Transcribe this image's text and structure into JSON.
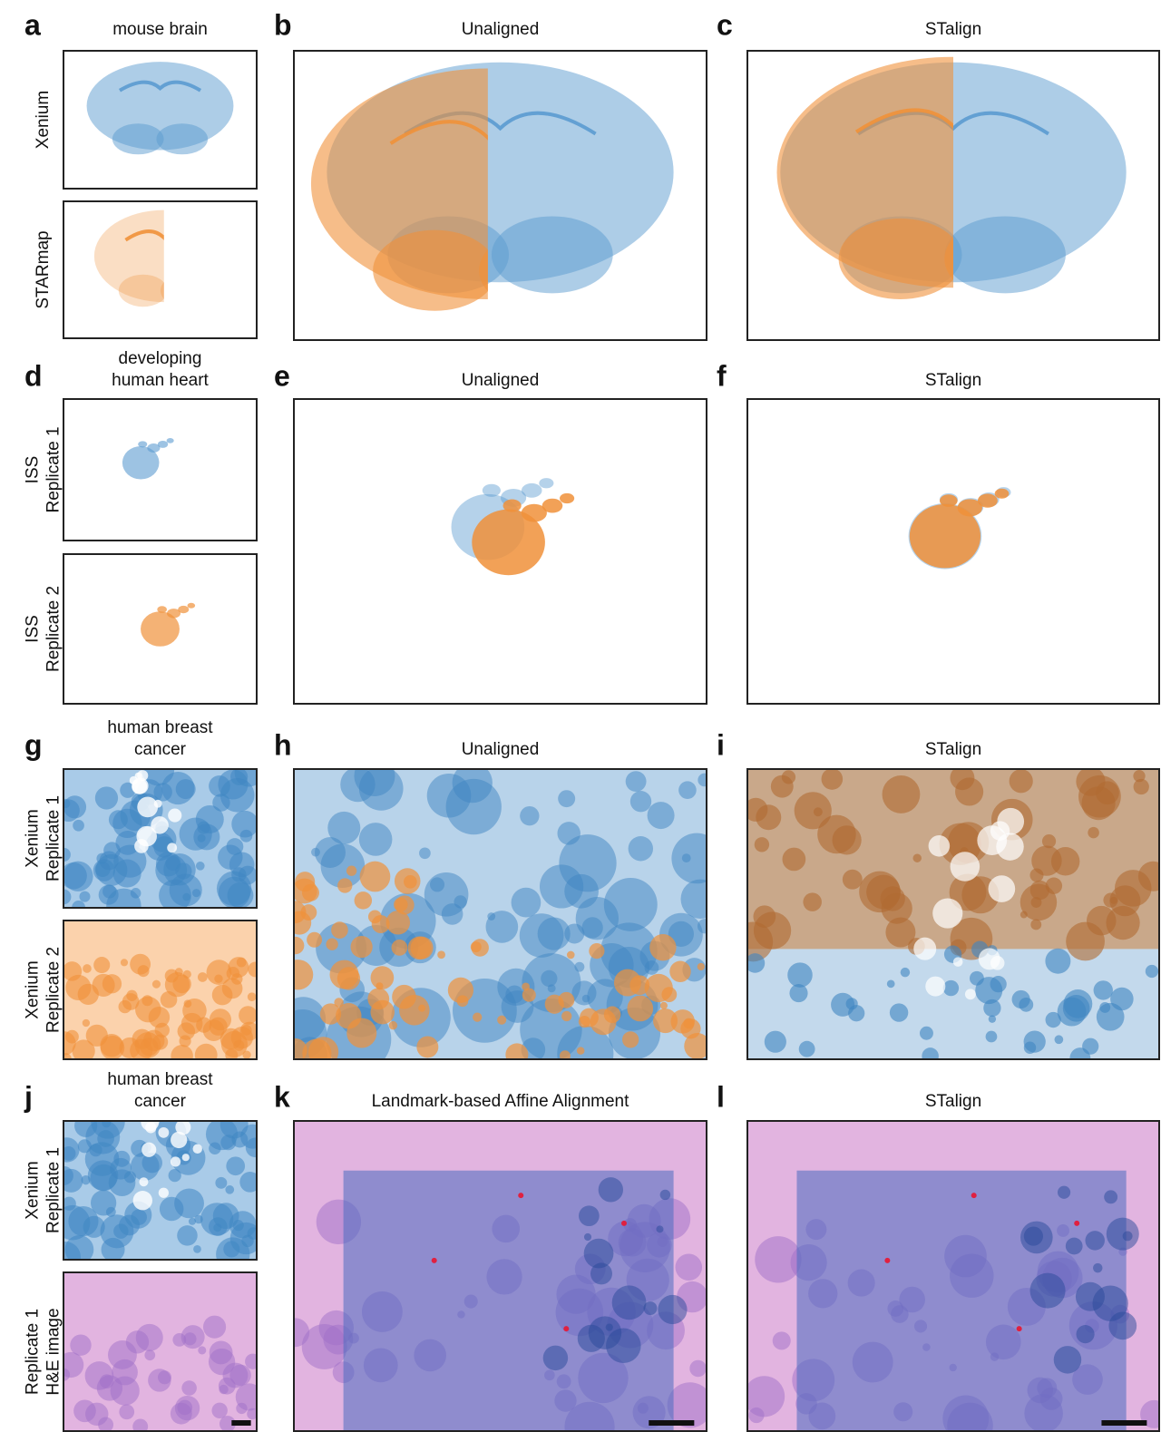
{
  "figure": {
    "panels": [
      {
        "letter": "a",
        "title": [
          "mouse brain"
        ],
        "row_labels": [
          [
            "Xenium"
          ],
          [
            "STARmap"
          ]
        ]
      },
      {
        "letter": "b",
        "title": [
          "Unaligned"
        ]
      },
      {
        "letter": "c",
        "title": [
          "STalign"
        ]
      },
      {
        "letter": "d",
        "title": [
          "developing",
          "human heart"
        ],
        "row_labels": [
          [
            "ISS",
            "Replicate 1"
          ],
          [
            "ISS",
            "Replicate 2"
          ]
        ]
      },
      {
        "letter": "e",
        "title": [
          "Unaligned"
        ]
      },
      {
        "letter": "f",
        "title": [
          "STalign"
        ]
      },
      {
        "letter": "g",
        "title": [
          "human breast",
          "cancer"
        ],
        "row_labels": [
          [
            "Xenium",
            "Replicate 1"
          ],
          [
            "Xenium",
            "Replicate 2"
          ]
        ]
      },
      {
        "letter": "h",
        "title": [
          "Unaligned"
        ]
      },
      {
        "letter": "i",
        "title": [
          "STalign"
        ]
      },
      {
        "letter": "j",
        "title": [
          "human breast",
          "cancer"
        ],
        "row_labels": [
          [
            "Xenium",
            "Replicate 1"
          ],
          [
            "Replicate 1",
            "H&E image"
          ]
        ]
      },
      {
        "letter": "k",
        "title": [
          "Landmark-based Affine Alignment"
        ]
      },
      {
        "letter": "l",
        "title": [
          "STalign"
        ]
      }
    ]
  }
}
